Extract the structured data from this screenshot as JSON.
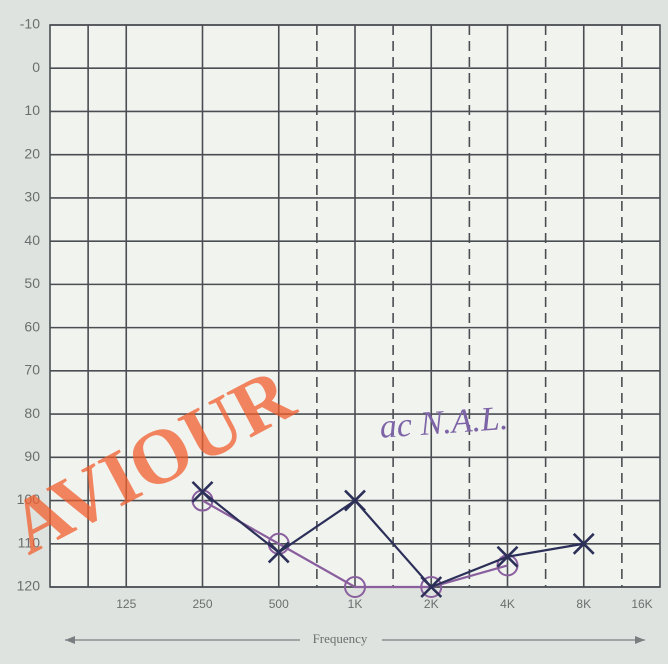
{
  "chart_data": {
    "type": "line",
    "x_label": "Frequency",
    "categories": [
      "125",
      "250",
      "500",
      "1K",
      "2K",
      "4K",
      "8K",
      "16K"
    ],
    "series": [
      {
        "color": "#8a5f9e",
        "marker": "o",
        "values": [
          null,
          100,
          110,
          120,
          120,
          115,
          null,
          null
        ]
      },
      {
        "color": "#2c3058",
        "marker": "x",
        "values": [
          null,
          98,
          112,
          100,
          120,
          113,
          110,
          null
        ]
      }
    ],
    "ylim": [
      -10,
      120
    ],
    "yticks": [
      -10,
      0,
      10,
      20,
      30,
      40,
      50,
      60,
      70,
      80,
      90,
      100,
      110,
      120
    ],
    "y_reversed": true,
    "grid": true,
    "annotations": [
      "ac N.A.L.",
      "AVIOUR"
    ]
  }
}
